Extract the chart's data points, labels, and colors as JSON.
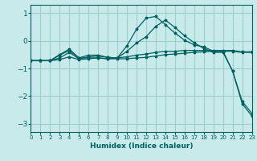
{
  "xlabel": "Humidex (Indice chaleur)",
  "background_color": "#c8eaea",
  "grid_color": "#a0cccc",
  "line_color": "#006060",
  "xlim": [
    0,
    23
  ],
  "ylim": [
    -3.3,
    1.3
  ],
  "yticks": [
    -3,
    -2,
    -1,
    0,
    1
  ],
  "xticks": [
    0,
    1,
    2,
    3,
    4,
    5,
    6,
    7,
    8,
    9,
    10,
    11,
    12,
    13,
    14,
    15,
    16,
    17,
    18,
    19,
    20,
    21,
    22,
    23
  ],
  "series": [
    {
      "x": [
        0,
        1,
        2,
        3,
        4,
        5,
        6,
        7,
        8,
        9,
        10,
        11,
        12,
        13,
        14,
        15,
        16,
        17,
        18,
        19,
        20,
        21,
        22,
        23
      ],
      "y": [
        -0.72,
        -0.72,
        -0.72,
        -0.52,
        -0.35,
        -0.62,
        -0.62,
        -0.62,
        -0.65,
        -0.62,
        -0.18,
        0.42,
        0.82,
        0.88,
        0.58,
        0.28,
        0.02,
        -0.15,
        -0.22,
        -0.38,
        -0.38,
        -1.1,
        -2.28,
        -2.72
      ]
    },
    {
      "x": [
        0,
        1,
        2,
        3,
        4,
        5,
        6,
        7,
        8,
        9,
        10,
        11,
        12,
        13,
        14,
        15,
        16,
        17,
        18,
        19,
        20,
        21,
        22,
        23
      ],
      "y": [
        -0.72,
        -0.72,
        -0.72,
        -0.5,
        -0.3,
        -0.62,
        -0.52,
        -0.52,
        -0.6,
        -0.62,
        -0.38,
        -0.08,
        0.15,
        0.52,
        0.75,
        0.48,
        0.18,
        -0.07,
        -0.28,
        -0.42,
        -0.42,
        -1.1,
        -2.2,
        -2.62
      ]
    },
    {
      "x": [
        0,
        1,
        2,
        3,
        4,
        5,
        6,
        7,
        8,
        9,
        10,
        11,
        12,
        13,
        14,
        15,
        16,
        17,
        18,
        19,
        20,
        21,
        22,
        23
      ],
      "y": [
        -0.72,
        -0.72,
        -0.72,
        -0.62,
        -0.42,
        -0.65,
        -0.58,
        -0.55,
        -0.6,
        -0.62,
        -0.58,
        -0.52,
        -0.48,
        -0.42,
        -0.38,
        -0.38,
        -0.35,
        -0.35,
        -0.35,
        -0.35,
        -0.35,
        -0.35,
        -0.4,
        -0.4
      ]
    },
    {
      "x": [
        0,
        1,
        2,
        3,
        4,
        5,
        6,
        7,
        8,
        9,
        10,
        11,
        12,
        13,
        14,
        15,
        16,
        17,
        18,
        19,
        20,
        21,
        22,
        23
      ],
      "y": [
        -0.72,
        -0.72,
        -0.72,
        -0.68,
        -0.58,
        -0.68,
        -0.65,
        -0.62,
        -0.65,
        -0.65,
        -0.65,
        -0.62,
        -0.6,
        -0.55,
        -0.5,
        -0.48,
        -0.45,
        -0.42,
        -0.4,
        -0.38,
        -0.38,
        -0.38,
        -0.42,
        -0.42
      ]
    }
  ]
}
